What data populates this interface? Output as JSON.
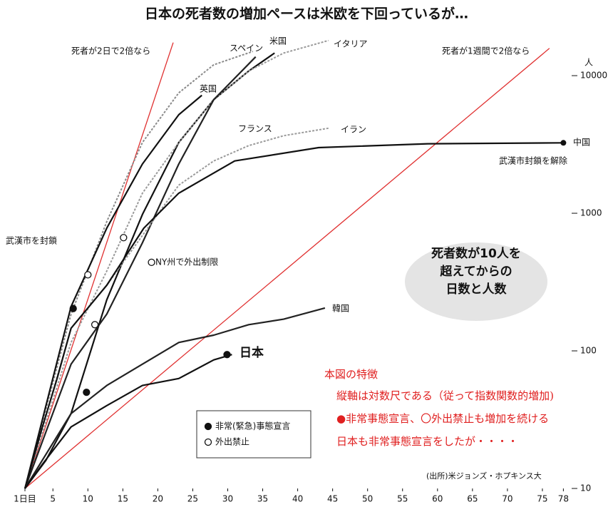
{
  "chart_data": {
    "type": "line",
    "title": "日本の死者数の増加ペースは米欧を下回っているが…",
    "y_unit": "人",
    "log_y": true,
    "xlim": [
      1,
      80
    ],
    "ylim": [
      10,
      20000
    ],
    "xticks": [
      {
        "value": 1,
        "label": "1日目"
      },
      5,
      10,
      15,
      20,
      25,
      30,
      35,
      40,
      45,
      50,
      55,
      60,
      65,
      70,
      75,
      78
    ],
    "yticks": [
      10,
      100,
      1000,
      10000
    ],
    "series": [
      {
        "name": "スペイン",
        "color": "#8a8a8a",
        "dashed": true,
        "x": [
          1,
          7.6,
          12.7,
          17.8,
          23,
          28,
          33.6
        ],
        "values": [
          10,
          185,
          870,
          3270,
          7500,
          12000,
          15000
        ]
      },
      {
        "name": "米国",
        "color": "#111111",
        "dashed": false,
        "x": [
          1,
          4,
          7.6,
          12.7,
          17.8,
          23,
          28,
          33,
          36.7
        ],
        "values": [
          10,
          16,
          35,
          235,
          980,
          3270,
          6700,
          10800,
          14600
        ]
      },
      {
        "name": "イタリア",
        "color": "#9a9a9a",
        "dashed": true,
        "x": [
          1,
          7.6,
          12.7,
          17.8,
          23,
          28,
          33,
          38,
          44.4
        ],
        "values": [
          10,
          115,
          380,
          1400,
          3270,
          6700,
          10800,
          14600,
          18000
        ]
      },
      {
        "name": "英国",
        "color": "#111111",
        "dashed": false,
        "x": [
          1,
          7.6,
          12.7,
          17.8,
          23,
          26.3
        ],
        "values": [
          10,
          210,
          780,
          2280,
          5200,
          7200
        ]
      },
      {
        "name": "フランス",
        "color": "#222222",
        "dashed": false,
        "x": [
          1,
          7.6,
          12.7,
          17.8,
          23,
          28,
          34
        ],
        "values": [
          10,
          80,
          185,
          610,
          2280,
          6700,
          13700
        ]
      },
      {
        "name": "イラン",
        "color": "#9a9a9a",
        "dashed": true,
        "x": [
          1,
          7.6,
          12.7,
          17.8,
          23,
          28,
          33,
          38,
          44.4
        ],
        "values": [
          10,
          146,
          300,
          690,
          1600,
          2400,
          3100,
          3660,
          4150
        ]
      },
      {
        "name": "中国",
        "color": "#111111",
        "dashed": false,
        "x": [
          1,
          3.5,
          5.6,
          7.6,
          12.7,
          18,
          23,
          31,
          43,
          58.6,
          78
        ],
        "values": [
          10,
          28,
          63,
          146,
          300,
          780,
          1400,
          2400,
          3000,
          3200,
          3250
        ]
      },
      {
        "name": "韓国",
        "color": "#222222",
        "dashed": false,
        "x": [
          1,
          7.6,
          12.7,
          17.8,
          23,
          28,
          33,
          38,
          43.9
        ],
        "values": [
          10,
          35,
          56,
          80,
          115,
          130,
          155,
          170,
          205
        ]
      },
      {
        "name": "日本",
        "color": "#111111",
        "dashed": false,
        "x": [
          1,
          3.5,
          7.6,
          12.7,
          17.8,
          23,
          28,
          30.6
        ],
        "values": [
          10,
          15,
          28,
          40,
          56,
          63,
          86,
          94
        ]
      }
    ],
    "markers": [
      {
        "name": "非常(緊急)事態宣言",
        "filled": true,
        "x": [
          7.9,
          9.8,
          29.9
        ],
        "values": [
          203,
          50,
          94
        ]
      },
      {
        "name": "外出禁止",
        "filled": false,
        "x": [
          10,
          11,
          15.1,
          19.1
        ],
        "values": [
          357,
          155,
          665,
          440
        ]
      }
    ],
    "reference_lines": [
      {
        "name": "死者が2日で2倍なら",
        "color": "#e03030",
        "x": [
          1,
          22.2
        ],
        "values": [
          10,
          17400
        ]
      },
      {
        "name": "死者が1週間で2倍なら",
        "color": "#e03030",
        "x": [
          1,
          76
        ],
        "values": [
          10,
          15800
        ]
      }
    ],
    "annotations": [
      "武漢市を封鎖",
      "武漢市封鎖を解除",
      "NY州で外出制限"
    ],
    "subject": [
      "死者数が10人を",
      "超えてからの",
      "日数と人数"
    ],
    "source": "(出所)米ジョンズ・ホプキンス大",
    "notes": [
      "本図の特徴",
      "縦軸は対数尺である（従って指数関数的増加)",
      "●非常事態宣言、〇外出禁止も増加を続ける",
      "日本も非常事態宣言をしたが・・・・"
    ]
  }
}
